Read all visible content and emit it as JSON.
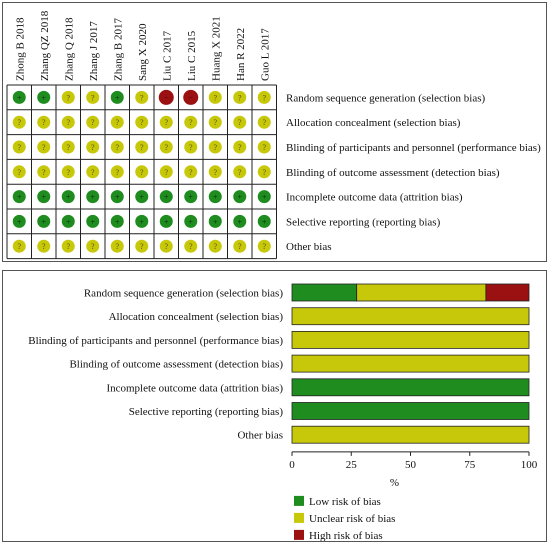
{
  "colors": {
    "low": "#1e8c1e",
    "unclear": "#c8c80a",
    "high": "#9b1010",
    "grid": "#222222"
  },
  "symbols": {
    "low": "+",
    "unclear": "?",
    "high": "−"
  },
  "chart_data": [
    {
      "type": "table",
      "studies": [
        "Zhong B 2018",
        "Zhang QZ 2018",
        "Zhang Q 2018",
        "Zhang J 2017",
        "Zhang B 2017",
        "Sang X 2020",
        "Liu C 2017",
        "Liu C 2015",
        "Huang X 2021",
        "Han R 2022",
        "Guo L 2017"
      ],
      "domains": [
        "Random sequence generation (selection bias)",
        "Allocation concealment (selection bias)",
        "Blinding of participants and personnel (performance bias)",
        "Blinding of outcome assessment (detection bias)",
        "Incomplete outcome data (attrition bias)",
        "Selective reporting (reporting bias)",
        "Other bias"
      ],
      "judgements": [
        [
          "low",
          "low",
          "unclear",
          "unclear",
          "low",
          "unclear",
          "high",
          "high",
          "unclear",
          "unclear",
          "unclear"
        ],
        [
          "unclear",
          "unclear",
          "unclear",
          "unclear",
          "unclear",
          "unclear",
          "unclear",
          "unclear",
          "unclear",
          "unclear",
          "unclear"
        ],
        [
          "unclear",
          "unclear",
          "unclear",
          "unclear",
          "unclear",
          "unclear",
          "unclear",
          "unclear",
          "unclear",
          "unclear",
          "unclear"
        ],
        [
          "unclear",
          "unclear",
          "unclear",
          "unclear",
          "unclear",
          "unclear",
          "unclear",
          "unclear",
          "unclear",
          "unclear",
          "unclear"
        ],
        [
          "low",
          "low",
          "low",
          "low",
          "low",
          "low",
          "low",
          "low",
          "low",
          "low",
          "low"
        ],
        [
          "low",
          "low",
          "low",
          "low",
          "low",
          "low",
          "low",
          "low",
          "low",
          "low",
          "low"
        ],
        [
          "unclear",
          "unclear",
          "unclear",
          "unclear",
          "unclear",
          "unclear",
          "unclear",
          "unclear",
          "unclear",
          "unclear",
          "unclear"
        ]
      ]
    },
    {
      "type": "bar",
      "orientation": "horizontal",
      "stacked": true,
      "categories": [
        "Random sequence generation (selection bias)",
        "Allocation concealment (selection bias)",
        "Blinding of participants and personnel (performance bias)",
        "Blinding of outcome assessment (detection bias)",
        "Incomplete outcome data (attrition bias)",
        "Selective reporting (reporting bias)",
        "Other bias"
      ],
      "series": [
        {
          "name": "Low risk of bias",
          "key": "low",
          "values": [
            27.3,
            0,
            0,
            0,
            100,
            100,
            0
          ]
        },
        {
          "name": "Unclear risk of bias",
          "key": "unclear",
          "values": [
            54.5,
            100,
            100,
            100,
            0,
            0,
            100
          ]
        },
        {
          "name": "High risk of bias",
          "key": "high",
          "values": [
            18.2,
            0,
            0,
            0,
            0,
            0,
            0
          ]
        }
      ],
      "xlim": [
        0,
        100
      ],
      "xticks": [
        "0",
        "25",
        "50",
        "75",
        "100"
      ],
      "xlabel": "%",
      "legend_position": "bottom-left"
    }
  ]
}
